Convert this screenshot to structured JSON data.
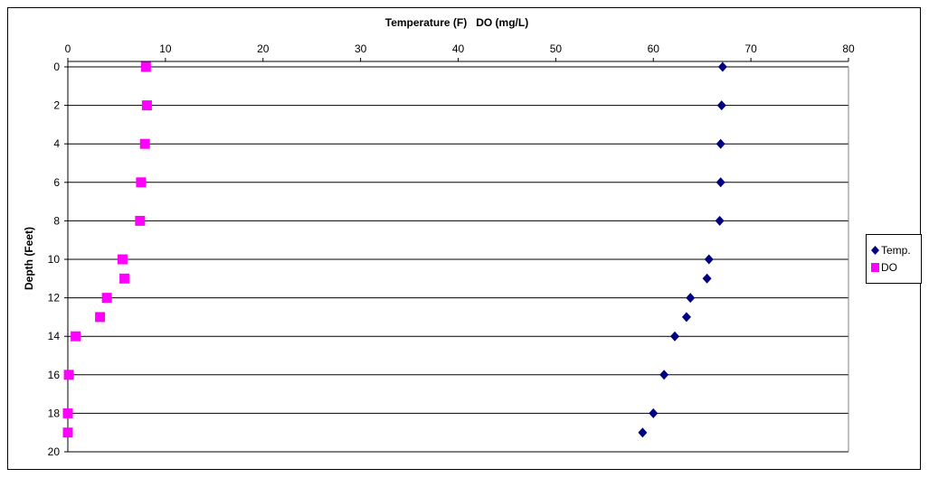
{
  "chart_data": {
    "type": "scatter",
    "title": "Temperature (F)   DO (mg/L)",
    "xlabel": "",
    "ylabel": "Depth (Feet)",
    "xlim": [
      0,
      80
    ],
    "ylim": [
      0,
      20
    ],
    "y_inverted": true,
    "x_axis_position": "top",
    "xticks": [
      "0",
      "10",
      "20",
      "30",
      "40",
      "50",
      "60",
      "70",
      "80"
    ],
    "yticks": [
      "0",
      "2",
      "4",
      "6",
      "8",
      "10",
      "12",
      "14",
      "16",
      "18",
      "20"
    ],
    "grid": "horizontal",
    "legend": "right",
    "series": [
      {
        "name": "Temp.",
        "marker": "diamond",
        "color": "#000080",
        "points": [
          {
            "x": 67.1,
            "y": 0
          },
          {
            "x": 67.0,
            "y": 2
          },
          {
            "x": 66.9,
            "y": 4
          },
          {
            "x": 66.9,
            "y": 6
          },
          {
            "x": 66.8,
            "y": 8
          },
          {
            "x": 65.7,
            "y": 10
          },
          {
            "x": 65.5,
            "y": 11
          },
          {
            "x": 63.8,
            "y": 12
          },
          {
            "x": 63.4,
            "y": 13
          },
          {
            "x": 62.2,
            "y": 14
          },
          {
            "x": 61.1,
            "y": 16
          },
          {
            "x": 60.0,
            "y": 18
          },
          {
            "x": 58.9,
            "y": 19
          }
        ]
      },
      {
        "name": "DO",
        "marker": "square",
        "color": "#ff00ff",
        "points": [
          {
            "x": 8.0,
            "y": 0
          },
          {
            "x": 8.1,
            "y": 2
          },
          {
            "x": 7.9,
            "y": 4
          },
          {
            "x": 7.5,
            "y": 6
          },
          {
            "x": 7.4,
            "y": 8
          },
          {
            "x": 5.6,
            "y": 10
          },
          {
            "x": 5.8,
            "y": 11
          },
          {
            "x": 4.0,
            "y": 12
          },
          {
            "x": 3.3,
            "y": 13
          },
          {
            "x": 0.8,
            "y": 14
          },
          {
            "x": 0.1,
            "y": 16
          },
          {
            "x": 0.0,
            "y": 18
          },
          {
            "x": 0.0,
            "y": 19
          }
        ]
      }
    ]
  }
}
